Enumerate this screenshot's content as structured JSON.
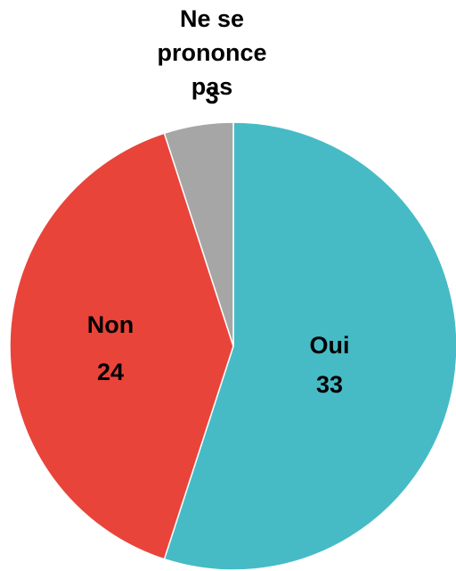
{
  "chart_data": {
    "type": "pie",
    "categories": [
      "Oui",
      "Non",
      "Ne se prononce pas"
    ],
    "values": [
      33,
      24,
      3
    ],
    "colors": [
      "#46bbc6",
      "#e9443a",
      "#a6a6a6"
    ]
  }
}
